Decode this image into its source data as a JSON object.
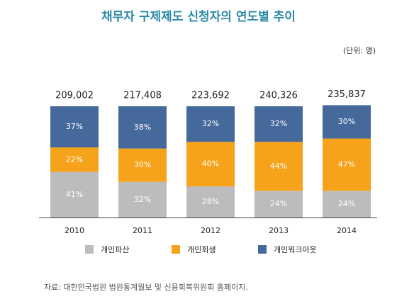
{
  "chart_data": {
    "type": "bar",
    "stacked": true,
    "title": "채무자 구제제도 신청자의 연도별 추이",
    "unit_label": "(단위: 명)",
    "source": "자료: 대한민국법원 법원통계월보 및 신용회복위원회 홈페이지.",
    "categories": [
      "2010",
      "2011",
      "2012",
      "2013",
      "2014"
    ],
    "totals": {
      "values": [
        209002,
        217408,
        223692,
        240326,
        235837
      ],
      "value_labels": [
        "209,002",
        "217,408",
        "223,692",
        "240,326",
        "235,837"
      ]
    },
    "series": [
      {
        "name": "개인파산",
        "color": "#bdbcbc",
        "values": [
          41,
          32,
          28,
          24,
          24
        ],
        "value_labels": [
          "41%",
          "32%",
          "28%",
          "24%",
          "24%"
        ]
      },
      {
        "name": "개인회생",
        "color": "#f7a21b",
        "values": [
          22,
          30,
          40,
          44,
          47
        ],
        "value_labels": [
          "22%",
          "30%",
          "40%",
          "44%",
          "47%"
        ]
      },
      {
        "name": "개인워크아웃",
        "color": "#44699a",
        "values": [
          37,
          38,
          32,
          32,
          30
        ],
        "value_labels": [
          "37%",
          "38%",
          "32%",
          "32%",
          "30%"
        ]
      }
    ]
  }
}
